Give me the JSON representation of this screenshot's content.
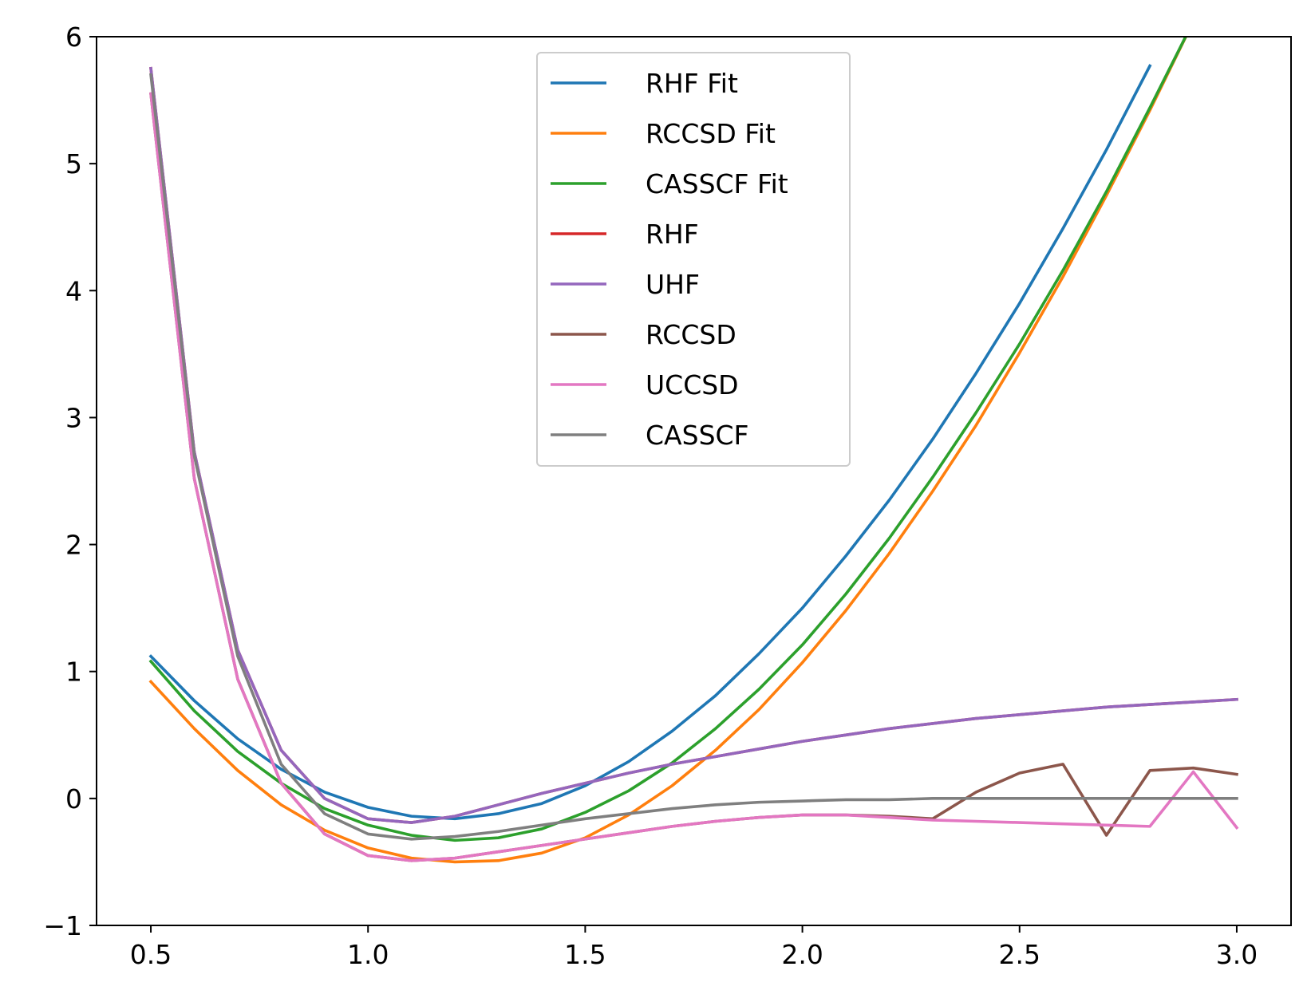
{
  "chart_data": {
    "type": "line",
    "title": "",
    "xlabel": "",
    "ylabel": "",
    "xlim": [
      0.375,
      3.125
    ],
    "ylim": [
      -1,
      6
    ],
    "x_ticks": [
      0.5,
      1.0,
      1.5,
      2.0,
      2.5,
      3.0
    ],
    "x_tick_labels": [
      "0.5",
      "1.0",
      "1.5",
      "2.0",
      "2.5",
      "3.0"
    ],
    "y_ticks": [
      -1,
      0,
      1,
      2,
      3,
      4,
      5,
      6
    ],
    "y_tick_labels": [
      "−1",
      "0",
      "1",
      "2",
      "3",
      "4",
      "5",
      "6"
    ],
    "grid": false,
    "legend_position": "top-center",
    "series": [
      {
        "name": "RHF Fit",
        "color": "#1f77b4",
        "kind": "polyfit",
        "x": [
          0.5,
          0.6,
          0.7,
          0.8,
          0.9,
          1.0,
          1.1,
          1.2,
          1.3,
          1.4,
          1.5,
          1.6,
          1.7,
          1.8,
          1.9,
          2.0,
          2.1,
          2.2,
          2.3,
          2.4,
          2.5,
          2.6,
          2.7,
          2.8
        ],
        "y": [
          1.12,
          0.77,
          0.47,
          0.23,
          0.05,
          -0.07,
          -0.14,
          -0.16,
          -0.12,
          -0.04,
          0.1,
          0.29,
          0.53,
          0.81,
          1.14,
          1.5,
          1.91,
          2.35,
          2.83,
          3.35,
          3.9,
          4.49,
          5.11,
          5.77
        ]
      },
      {
        "name": "RCCSD Fit",
        "color": "#ff7f0e",
        "kind": "polyfit",
        "x": [
          0.5,
          0.6,
          0.7,
          0.8,
          0.9,
          1.0,
          1.1,
          1.2,
          1.3,
          1.4,
          1.5,
          1.6,
          1.7,
          1.8,
          1.9,
          2.0,
          2.1,
          2.2,
          2.3,
          2.4,
          2.5,
          2.6,
          2.7,
          2.8,
          2.9
        ],
        "y": [
          0.92,
          0.55,
          0.22,
          -0.05,
          -0.25,
          -0.39,
          -0.47,
          -0.5,
          -0.49,
          -0.43,
          -0.31,
          -0.13,
          0.1,
          0.38,
          0.7,
          1.07,
          1.48,
          1.93,
          2.42,
          2.94,
          3.51,
          4.11,
          4.75,
          5.42,
          6.12
        ]
      },
      {
        "name": "CASSCF Fit",
        "color": "#2ca02c",
        "kind": "polyfit",
        "x": [
          0.5,
          0.6,
          0.7,
          0.8,
          0.9,
          1.0,
          1.1,
          1.2,
          1.3,
          1.4,
          1.5,
          1.6,
          1.7,
          1.8,
          1.9,
          2.0,
          2.1,
          2.2,
          2.3,
          2.4,
          2.5,
          2.6,
          2.7,
          2.8,
          2.9
        ],
        "y": [
          1.08,
          0.69,
          0.37,
          0.12,
          -0.08,
          -0.21,
          -0.29,
          -0.33,
          -0.31,
          -0.24,
          -0.11,
          0.06,
          0.28,
          0.55,
          0.86,
          1.21,
          1.61,
          2.05,
          2.53,
          3.04,
          3.58,
          4.16,
          4.78,
          5.44,
          6.12
        ]
      },
      {
        "name": "RHF",
        "color": "#d62728",
        "kind": "data",
        "x": [
          0.5,
          0.6,
          0.7,
          0.8,
          0.9,
          1.0,
          1.1,
          1.2,
          1.3,
          1.4,
          1.5,
          1.6,
          1.7,
          1.8,
          1.9,
          2.0,
          2.1,
          2.2,
          2.3,
          2.4,
          2.5,
          2.6,
          2.7,
          2.8,
          2.9,
          3.0
        ],
        "y": [
          5.75,
          2.73,
          1.17,
          0.38,
          0.0,
          -0.16,
          -0.19,
          -0.14,
          -0.05,
          0.04,
          0.12,
          0.2,
          0.27,
          0.33,
          0.39,
          0.45,
          0.5,
          0.55,
          0.59,
          0.63,
          0.66,
          0.69,
          0.72,
          0.74,
          0.76,
          0.78
        ]
      },
      {
        "name": "UHF",
        "color": "#9467bd",
        "kind": "data",
        "x": [
          0.5,
          0.6,
          0.7,
          0.8,
          0.9,
          1.0,
          1.1,
          1.2,
          1.3,
          1.4,
          1.5,
          1.6,
          1.7,
          1.8,
          1.9,
          2.0,
          2.1,
          2.2,
          2.3,
          2.4,
          2.5,
          2.6,
          2.7,
          2.8,
          2.9,
          3.0
        ],
        "y": [
          5.75,
          2.73,
          1.17,
          0.38,
          0.0,
          -0.16,
          -0.19,
          -0.14,
          -0.05,
          0.04,
          0.12,
          0.2,
          0.27,
          0.33,
          0.39,
          0.45,
          0.5,
          0.55,
          0.59,
          0.63,
          0.66,
          0.69,
          0.72,
          0.74,
          0.76,
          0.78
        ]
      },
      {
        "name": "RCCSD",
        "color": "#8c564b",
        "kind": "data",
        "x": [
          0.5,
          0.6,
          0.7,
          0.8,
          0.9,
          1.0,
          1.1,
          1.2,
          1.3,
          1.4,
          1.5,
          1.6,
          1.7,
          1.8,
          1.9,
          2.0,
          2.1,
          2.2,
          2.3,
          2.4,
          2.5,
          2.6,
          2.7,
          2.8,
          2.9,
          3.0
        ],
        "y": [
          5.55,
          2.52,
          0.94,
          0.12,
          -0.28,
          -0.45,
          -0.49,
          -0.47,
          -0.42,
          -0.37,
          -0.32,
          -0.27,
          -0.22,
          -0.18,
          -0.15,
          -0.13,
          -0.13,
          -0.14,
          -0.16,
          0.05,
          0.2,
          0.27,
          -0.29,
          0.22,
          0.24,
          0.19
        ]
      },
      {
        "name": "UCCSD",
        "color": "#e377c2",
        "kind": "data",
        "x": [
          0.5,
          0.6,
          0.7,
          0.8,
          0.9,
          1.0,
          1.1,
          1.2,
          1.3,
          1.4,
          1.5,
          1.6,
          1.7,
          1.8,
          1.9,
          2.0,
          2.1,
          2.2,
          2.3,
          2.4,
          2.5,
          2.6,
          2.7,
          2.8,
          2.9,
          3.0
        ],
        "y": [
          5.55,
          2.52,
          0.94,
          0.12,
          -0.28,
          -0.45,
          -0.49,
          -0.47,
          -0.42,
          -0.37,
          -0.32,
          -0.27,
          -0.22,
          -0.18,
          -0.15,
          -0.13,
          -0.13,
          -0.15,
          -0.17,
          -0.18,
          -0.19,
          -0.2,
          -0.21,
          -0.22,
          0.21,
          -0.23
        ]
      },
      {
        "name": "CASSCF",
        "color": "#7f7f7f",
        "kind": "data",
        "x": [
          0.5,
          0.6,
          0.7,
          0.8,
          0.9,
          1.0,
          1.1,
          1.2,
          1.3,
          1.4,
          1.5,
          1.6,
          1.7,
          1.8,
          1.9,
          2.0,
          2.1,
          2.2,
          2.3,
          2.4,
          2.5,
          2.6,
          2.7,
          2.8,
          2.9,
          3.0
        ],
        "y": [
          5.7,
          2.7,
          1.12,
          0.27,
          -0.12,
          -0.28,
          -0.32,
          -0.3,
          -0.26,
          -0.21,
          -0.16,
          -0.12,
          -0.08,
          -0.05,
          -0.03,
          -0.02,
          -0.01,
          -0.01,
          0.0,
          0.0,
          0.0,
          0.0,
          0.0,
          0.0,
          0.0,
          0.0
        ]
      }
    ]
  }
}
